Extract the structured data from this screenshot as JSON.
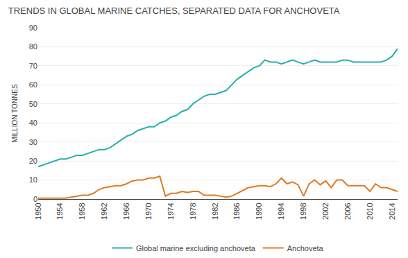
{
  "chart_data": {
    "type": "line",
    "title": "TRENDS IN GLOBAL MARINE CATCHES, SEPARATED DATA FOR ANCHOVETA",
    "ylabel": "MILLION TONNES",
    "x": [
      1950,
      1951,
      1952,
      1953,
      1954,
      1955,
      1956,
      1957,
      1958,
      1959,
      1960,
      1961,
      1962,
      1963,
      1964,
      1965,
      1966,
      1967,
      1968,
      1969,
      1970,
      1971,
      1972,
      1973,
      1974,
      1975,
      1976,
      1977,
      1978,
      1979,
      1980,
      1981,
      1982,
      1983,
      1984,
      1985,
      1986,
      1987,
      1988,
      1989,
      1990,
      1991,
      1992,
      1993,
      1994,
      1995,
      1996,
      1997,
      1998,
      1999,
      2000,
      2001,
      2002,
      2003,
      2004,
      2005,
      2006,
      2007,
      2008,
      2009,
      2010,
      2011,
      2012,
      2013,
      2014,
      2015
    ],
    "series": [
      {
        "name": "Global marine excluding anchoveta",
        "color": "#2aaeaa",
        "values": [
          17,
          18,
          19,
          20,
          21,
          21,
          22,
          23,
          23,
          24,
          25,
          26,
          26,
          27,
          29,
          31,
          33,
          34,
          36,
          37,
          38,
          38,
          40,
          41,
          43,
          44,
          46,
          47,
          50,
          52,
          54,
          55,
          55,
          56,
          57,
          60,
          63,
          65,
          67,
          69,
          70,
          73,
          72,
          72,
          71,
          72,
          73,
          72,
          71,
          72,
          73,
          72,
          72,
          72,
          72,
          73,
          73,
          72,
          72,
          72,
          72,
          72,
          72,
          73,
          75,
          79
        ]
      },
      {
        "name": "Anchoveta",
        "color": "#e07820",
        "values": [
          0.5,
          0.5,
          0.5,
          0.5,
          0.5,
          0.5,
          1.0,
          1.5,
          2.0,
          2.0,
          3.0,
          5.0,
          6.0,
          6.5,
          7.0,
          7.0,
          8.0,
          9.5,
          10.0,
          10.0,
          11.0,
          11.0,
          12.0,
          1.5,
          3.0,
          3.0,
          4.0,
          3.5,
          4.0,
          4.0,
          2.0,
          2.0,
          2.0,
          1.5,
          1.0,
          1.5,
          3.0,
          4.5,
          6.0,
          6.5,
          7.0,
          7.0,
          6.5,
          8.0,
          11.0,
          8.0,
          9.0,
          7.5,
          1.5,
          8.0,
          10.0,
          7.5,
          9.5,
          6.0,
          10.0,
          10.0,
          7.0,
          7.0,
          7.0,
          7.0,
          4.0,
          8.0,
          6.0,
          6.0,
          5.0,
          4.0
        ]
      }
    ],
    "xlim": [
      1950,
      2015
    ],
    "xticks": [
      1950,
      1954,
      1958,
      1962,
      1966,
      1970,
      1974,
      1978,
      1982,
      1986,
      1990,
      1994,
      1998,
      2002,
      2006,
      2010,
      2014
    ],
    "ylim": [
      0,
      90
    ],
    "yticks": [
      0,
      10,
      20,
      30,
      40,
      50,
      60,
      70,
      80,
      90
    ],
    "grid": true,
    "legend": "bottom"
  }
}
